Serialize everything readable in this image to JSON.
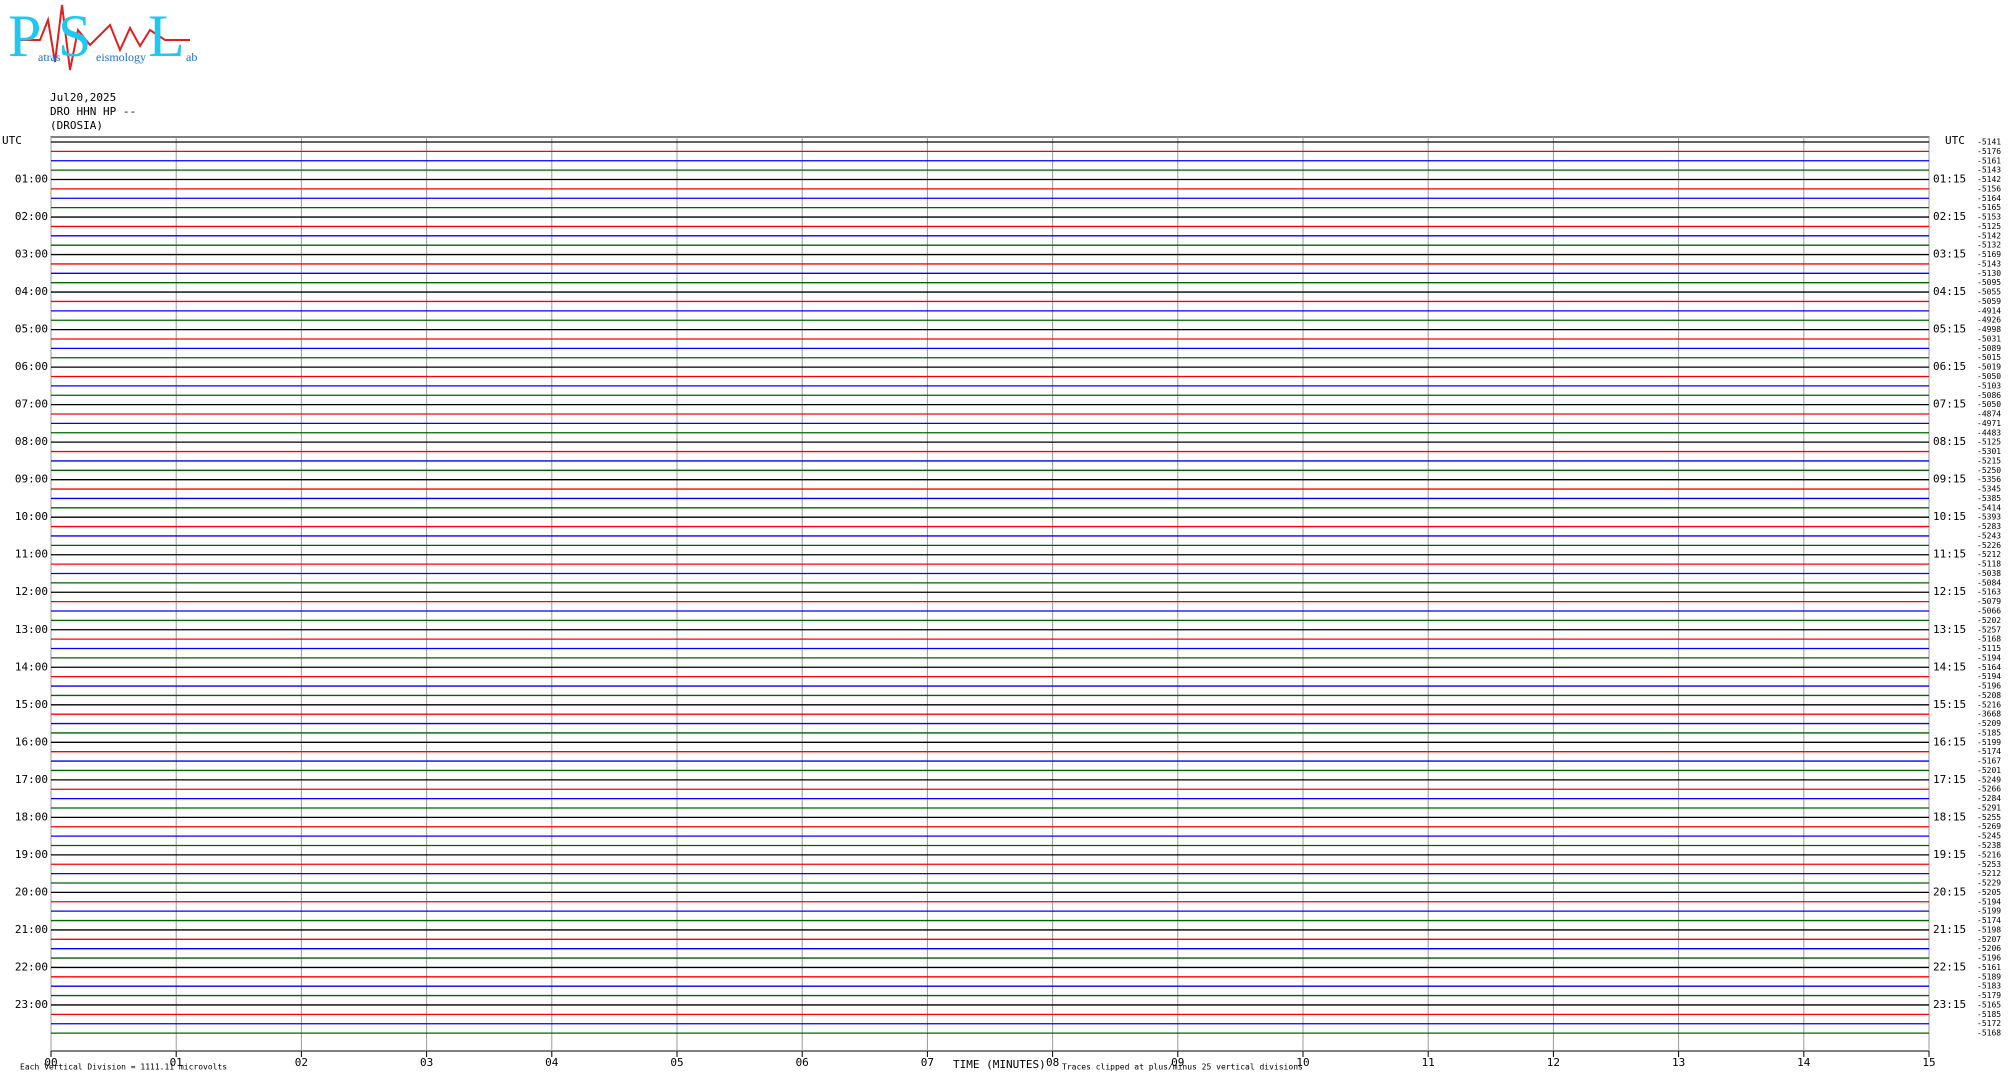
{
  "chart_data": {
    "type": "helicorder",
    "logo": {
      "letters": [
        "P",
        "S",
        "L"
      ],
      "words": [
        "atras",
        "eismology",
        "ab"
      ]
    },
    "date": "Jul20,2025",
    "station": "DRO HHN HP --",
    "location": "(DROSIA)",
    "left_axis_title": "UTC",
    "right_axis_title": "UTC",
    "left_hour_labels": [
      "01:00",
      "02:00",
      "03:00",
      "04:00",
      "05:00",
      "06:00",
      "07:00",
      "08:00",
      "09:00",
      "10:00",
      "11:00",
      "12:00",
      "13:00",
      "14:00",
      "15:00",
      "16:00",
      "17:00",
      "18:00",
      "19:00",
      "20:00",
      "21:00",
      "22:00",
      "23:00"
    ],
    "right_hour_labels": [
      "01:15",
      "02:15",
      "03:15",
      "04:15",
      "05:15",
      "06:15",
      "07:15",
      "08:15",
      "09:15",
      "10:15",
      "11:15",
      "12:15",
      "13:15",
      "14:15",
      "15:15",
      "16:15",
      "17:15",
      "18:15",
      "19:15",
      "20:15",
      "21:15",
      "22:15",
      "23:15"
    ],
    "trace_levels": [
      -5141,
      -5176,
      -5161,
      -5143,
      -5142,
      -5156,
      -5164,
      -5165,
      -5153,
      -5125,
      -5142,
      -5132,
      -5169,
      -5143,
      -5130,
      -5095,
      -5055,
      -5059,
      -4914,
      -4926,
      -4998,
      -5031,
      -5089,
      -5015,
      -5019,
      -5050,
      -5103,
      -5086,
      -5050,
      -4874,
      -4971,
      -4483,
      -5125,
      -5301,
      -5215,
      -5250,
      -5356,
      -5345,
      -5385,
      -5414,
      -5393,
      -5283,
      -5243,
      -5226,
      -5212,
      -5118,
      -5038,
      -5084,
      -5163,
      -5079,
      -5066,
      -5202,
      -5257,
      -5168,
      -5115,
      -5194,
      -5164,
      -5194,
      -5196,
      -5208,
      -5216,
      -3668,
      -5209,
      -5185,
      -5199,
      -5174,
      -5167,
      -5201,
      -5249,
      -5266,
      -5284,
      -5291,
      -5255,
      -5269,
      -5245,
      -5238,
      -5216,
      -5253,
      -5212,
      -5229,
      -5205,
      -5194,
      -5199,
      -5174,
      -5198,
      -5207,
      -5206,
      -5196,
      -5161,
      -5189,
      -5183,
      -5179,
      -5165,
      -5185,
      -5172,
      -5168
    ],
    "trace_colors": [
      "#000000",
      "#ff0000",
      "#0000ff",
      "#006400"
    ],
    "xlim": [
      0,
      15
    ],
    "xticks": [
      {
        "value": 0,
        "label": "00"
      },
      {
        "value": 1,
        "label": "01"
      },
      {
        "value": 2,
        "label": "02"
      },
      {
        "value": 3,
        "label": "03"
      },
      {
        "value": 4,
        "label": "04"
      },
      {
        "value": 5,
        "label": "05"
      },
      {
        "value": 6,
        "label": "06"
      },
      {
        "value": 7,
        "label": "07"
      },
      {
        "value": 8,
        "label": "08"
      },
      {
        "value": 9,
        "label": "09"
      },
      {
        "value": 10,
        "label": "10"
      },
      {
        "value": 11,
        "label": "11"
      },
      {
        "value": 12,
        "label": "12"
      },
      {
        "value": 13,
        "label": "13"
      },
      {
        "value": 14,
        "label": "14"
      },
      {
        "value": 15,
        "label": "15"
      }
    ],
    "xlabel": "TIME (MINUTES)",
    "scale_note": "Each Vertical Division = 1111.11 microvolts",
    "clip_note": "Traces clipped at plus/minus 25 vertical divisions",
    "grid": true
  }
}
